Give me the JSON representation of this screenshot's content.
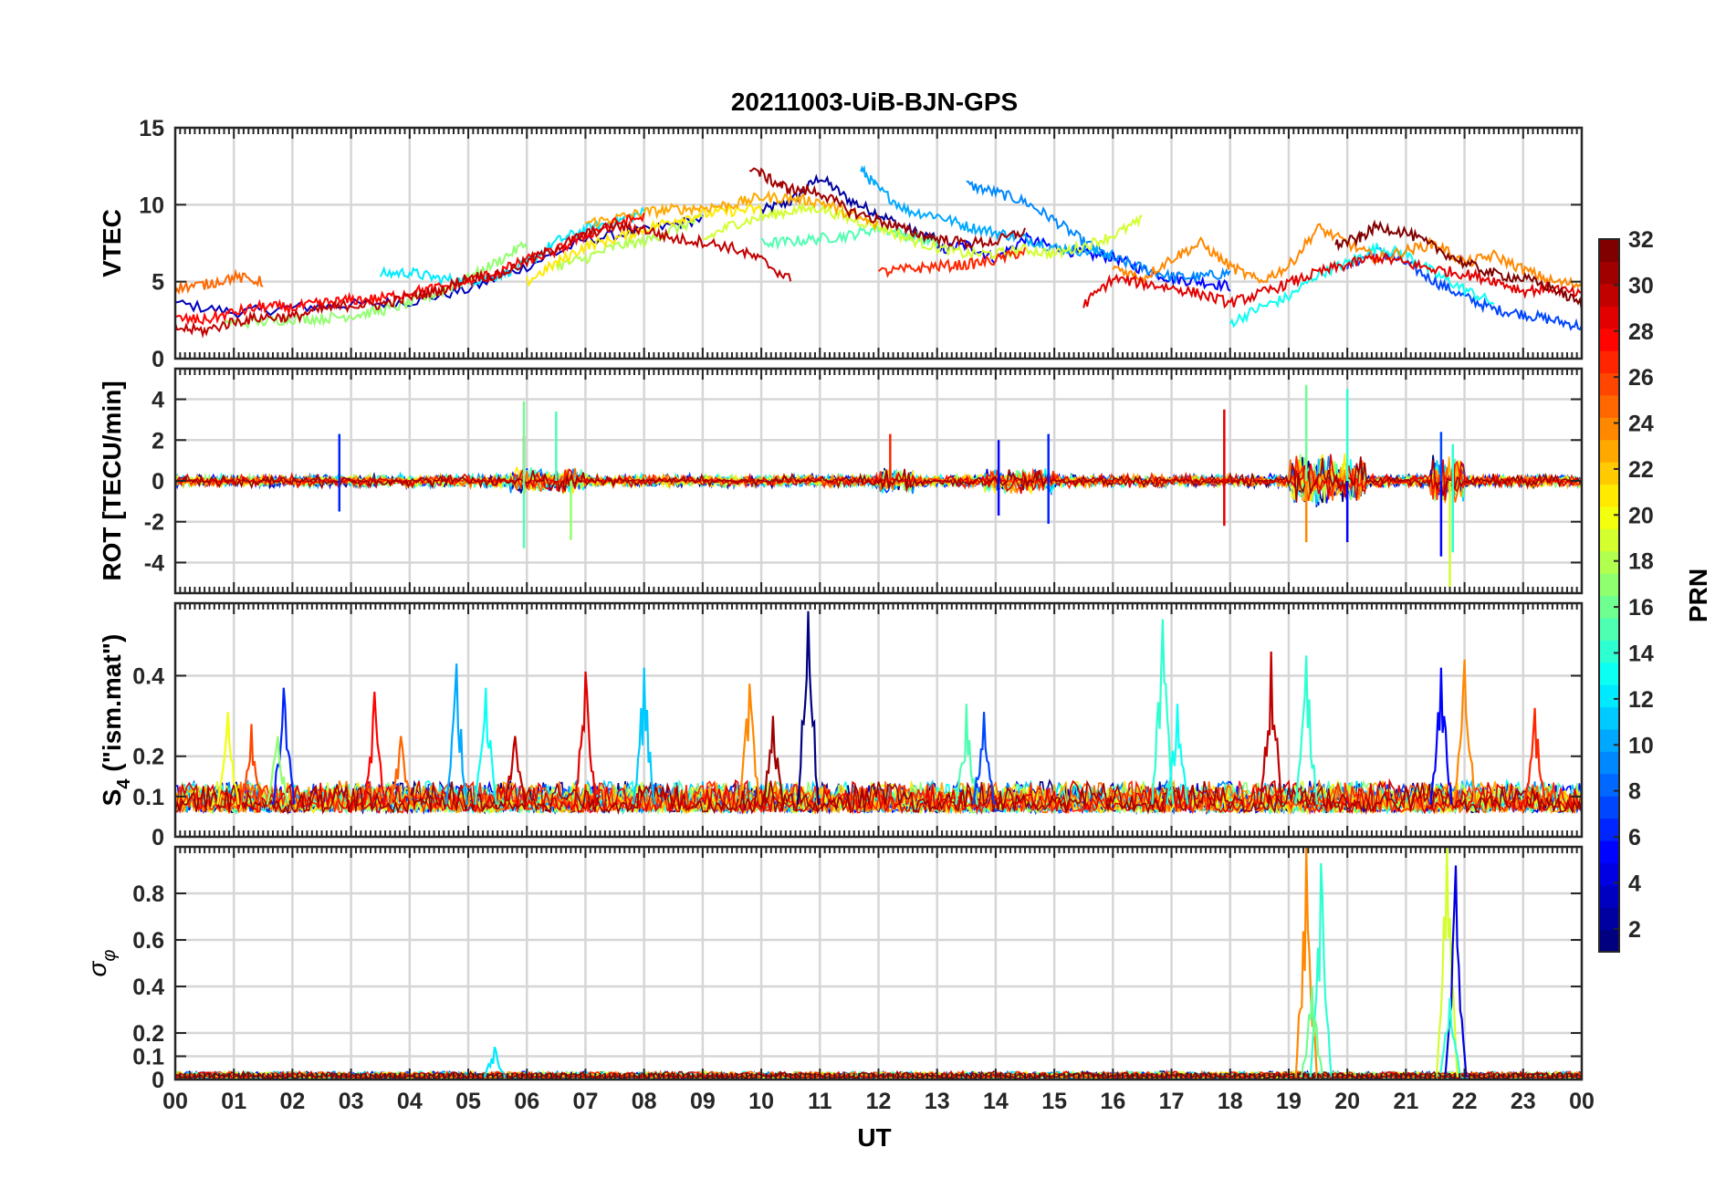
{
  "chart_data": {
    "title": "20211003-UiB-BJN-GPS",
    "xlabel": "UT",
    "x_tick_labels": [
      "00",
      "01",
      "02",
      "03",
      "04",
      "05",
      "06",
      "07",
      "08",
      "09",
      "10",
      "11",
      "12",
      "13",
      "14",
      "15",
      "16",
      "17",
      "18",
      "19",
      "20",
      "21",
      "22",
      "23",
      "00"
    ],
    "x_range_hours": [
      0,
      24
    ],
    "colorbar": {
      "label": "PRN",
      "range": [
        1,
        32
      ],
      "ticks": [
        2,
        4,
        6,
        8,
        10,
        12,
        14,
        16,
        18,
        20,
        22,
        24,
        26,
        28,
        30,
        32
      ],
      "colormap": "jet"
    },
    "panels": [
      {
        "type": "line",
        "ylabel": "VTEC",
        "ylim": [
          0,
          15
        ],
        "yticks": [
          0,
          5,
          10,
          15
        ],
        "tick_labels": [
          "0",
          "5",
          "10",
          "15"
        ],
        "series": [
          {
            "prn": 2,
            "x": [
              10.0,
              10.5,
              11.0,
              11.5,
              12.0,
              12.5,
              13.0
            ],
            "y": [
              9.6,
              10.2,
              11.8,
              10.3,
              9.4,
              8.4,
              7.7
            ]
          },
          {
            "prn": 3,
            "x": [
              0.0,
              1.0,
              2.0,
              3.0,
              4.0,
              5.0,
              6.0,
              7.0,
              8.0,
              9.0
            ],
            "y": [
              3.6,
              3.0,
              3.3,
              3.5,
              3.7,
              4.5,
              6.0,
              7.7,
              8.3,
              9.1
            ]
          },
          {
            "prn": 5,
            "x": [
              13.0,
              13.5,
              14.0,
              14.5,
              15.0,
              15.5,
              16.0,
              16.5,
              17.0,
              17.5,
              18.0
            ],
            "y": [
              7.0,
              7.4,
              6.5,
              7.8,
              7.2,
              6.8,
              6.6,
              5.8,
              5.2,
              5.0,
              4.7
            ]
          },
          {
            "prn": 7,
            "x": [
              20.0,
              20.5,
              21.0,
              21.5,
              22.0,
              22.5,
              23.0,
              23.5,
              24.0
            ],
            "y": [
              6.0,
              7.0,
              6.2,
              5.0,
              4.0,
              3.2,
              2.9,
              2.5,
              2.1
            ]
          },
          {
            "prn": 9,
            "x": [
              13.5,
              14.0,
              14.5,
              15.0,
              15.5,
              16.0,
              16.5,
              17.0,
              17.5,
              18.0
            ],
            "y": [
              11.3,
              10.8,
              10.2,
              9.0,
              7.6,
              6.5,
              5.9,
              5.3,
              5.3,
              5.6
            ]
          },
          {
            "prn": 10,
            "x": [
              11.7,
              12.0,
              12.5,
              13.0,
              13.5,
              14.0,
              14.5,
              15.0,
              15.5,
              16.0
            ],
            "y": [
              12.3,
              11.0,
              9.6,
              9.3,
              8.6,
              8.2,
              7.8,
              7.2,
              7.0,
              6.8
            ]
          },
          {
            "prn": 12,
            "x": [
              3.5,
              4.0,
              4.5,
              5.0,
              5.5,
              6.0,
              6.5,
              7.0,
              7.5,
              8.0
            ],
            "y": [
              5.5,
              5.6,
              5.2,
              5.0,
              5.4,
              6.2,
              7.6,
              8.4,
              8.9,
              9.5
            ]
          },
          {
            "prn": 13,
            "x": [
              18.0,
              18.5,
              19.0,
              19.5,
              20.0,
              20.5,
              21.0,
              21.5,
              22.0,
              22.5
            ],
            "y": [
              2.3,
              3.3,
              4.0,
              5.5,
              6.2,
              7.2,
              6.8,
              5.5,
              4.5,
              3.6
            ]
          },
          {
            "prn": 15,
            "x": [
              10.0,
              10.5,
              11.0,
              11.5,
              12.0,
              12.5,
              13.0
            ],
            "y": [
              7.5,
              7.6,
              7.8,
              8.0,
              8.5,
              8.0,
              7.5
            ]
          },
          {
            "prn": 17,
            "x": [
              0.8,
              1.5,
              2.0,
              2.5,
              3.0,
              3.5,
              4.0,
              4.5,
              5.0,
              5.5,
              6.0
            ],
            "y": [
              2.3,
              2.4,
              2.6,
              2.6,
              2.8,
              3.1,
              3.6,
              4.3,
              5.2,
              6.3,
              7.5
            ]
          },
          {
            "prn": 18,
            "x": [
              6.5,
              7.0,
              7.5,
              8.0,
              8.5,
              9.0
            ],
            "y": [
              6.0,
              6.5,
              7.3,
              7.6,
              8.4,
              9.1
            ]
          },
          {
            "prn": 19,
            "x": [
              9.0,
              9.5,
              10.0,
              10.5,
              11.0,
              11.5,
              12.0,
              12.5,
              13.0,
              13.5,
              14.0,
              14.5,
              15.0,
              15.5,
              16.0,
              16.5
            ],
            "y": [
              7.7,
              8.7,
              9.2,
              9.6,
              9.8,
              9.1,
              8.6,
              7.8,
              7.2,
              6.8,
              6.8,
              7.1,
              6.8,
              7.3,
              8.0,
              9.0
            ]
          },
          {
            "prn": 21,
            "x": [
              6.0,
              6.5,
              7.0,
              7.5,
              8.0,
              8.5,
              9.0,
              9.5,
              10.0
            ],
            "y": [
              5.0,
              6.2,
              7.3,
              7.8,
              8.4,
              9.0,
              9.4,
              9.6,
              9.7
            ]
          },
          {
            "prn": 23,
            "x": [
              7.0,
              7.5,
              8.0,
              8.5,
              9.0,
              9.5,
              10.0,
              10.5,
              11.0,
              11.5,
              12.0
            ],
            "y": [
              8.8,
              9.1,
              9.5,
              9.7,
              9.8,
              10.0,
              10.5,
              10.4,
              10.2,
              9.4,
              8.6
            ]
          },
          {
            "prn": 24,
            "x": [
              16.0,
              16.5,
              17.0,
              17.5,
              18.0,
              18.5,
              19.0,
              19.5,
              20.0,
              20.5,
              21.0,
              21.5,
              22.0,
              22.5,
              23.0,
              23.5,
              24.0
            ],
            "y": [
              6.0,
              5.2,
              6.5,
              7.5,
              6.0,
              5.0,
              6.0,
              8.5,
              7.5,
              6.5,
              7.0,
              7.5,
              6.2,
              6.7,
              5.8,
              5.0,
              4.8
            ]
          },
          {
            "prn": 25,
            "x": [
              0.0,
              0.5,
              1.0,
              1.5
            ],
            "y": [
              4.6,
              4.8,
              5.3,
              5.0
            ]
          },
          {
            "prn": 27,
            "x": [
              12.0,
              12.5,
              13.0,
              13.5,
              14.0,
              14.5
            ],
            "y": [
              5.6,
              5.8,
              6.0,
              6.1,
              6.4,
              7.0
            ]
          },
          {
            "prn": 28,
            "x": [
              0.0,
              0.5,
              1.0,
              1.5,
              2.0,
              2.5,
              3.0,
              3.5,
              4.0,
              4.5,
              5.0,
              5.5,
              6.0,
              6.5,
              7.0,
              7.5,
              8.0
            ],
            "y": [
              2.6,
              2.5,
              3.0,
              3.4,
              3.3,
              3.6,
              3.8,
              3.9,
              4.3,
              4.6,
              5.0,
              5.6,
              6.4,
              7.0,
              8.0,
              8.8,
              9.2
            ]
          },
          {
            "prn": 29,
            "x": [
              15.5,
              16.0,
              16.5,
              17.0,
              17.5,
              18.0,
              18.5,
              19.0,
              19.5,
              20.0,
              20.5,
              21.0,
              21.5,
              22.0,
              22.5,
              23.0,
              23.5,
              24.0
            ],
            "y": [
              3.5,
              5.2,
              4.9,
              4.6,
              4.2,
              3.6,
              4.2,
              4.9,
              5.6,
              6.1,
              6.6,
              6.2,
              5.8,
              5.5,
              5.1,
              4.4,
              4.6,
              4.1
            ]
          },
          {
            "prn": 30,
            "x": [
              0.0,
              0.5,
              1.0,
              1.5,
              2.0,
              2.5,
              3.0,
              3.5,
              4.0,
              4.5,
              5.0,
              5.5,
              6.0,
              6.5,
              7.0,
              7.5,
              8.0,
              8.5,
              9.0,
              9.5,
              10.0,
              10.5
            ],
            "y": [
              2.0,
              1.8,
              2.4,
              2.7,
              2.7,
              3.2,
              3.5,
              3.5,
              4.0,
              4.4,
              5.3,
              5.4,
              6.3,
              7.2,
              8.1,
              8.6,
              8.4,
              7.8,
              7.6,
              7.2,
              6.4,
              5.1
            ]
          },
          {
            "prn": 31,
            "x": [
              9.8,
              10.2,
              10.5,
              11.0,
              11.5,
              12.0,
              12.5,
              13.0,
              13.5,
              14.0,
              14.5
            ],
            "y": [
              12.5,
              11.5,
              11.0,
              10.8,
              9.6,
              9.0,
              8.3,
              7.8,
              7.5,
              7.6,
              8.3
            ]
          },
          {
            "prn": 32,
            "x": [
              19.8,
              20.2,
              20.5,
              21.0,
              21.5,
              22.0,
              22.5,
              23.0,
              23.5,
              24.0
            ],
            "y": [
              7.4,
              7.8,
              8.6,
              8.2,
              7.2,
              6.2,
              5.5,
              5.2,
              4.6,
              3.5
            ]
          }
        ]
      },
      {
        "type": "line",
        "ylabel": "ROT [TECU/min]",
        "ylim": [
          -5.5,
          5.5
        ],
        "yticks": [
          -4,
          -2,
          0,
          2,
          4
        ],
        "tick_labels": [
          "-4",
          "-2",
          "0",
          "2",
          "4"
        ],
        "description_series": "noisy fluctuations around 0 for all PRNs",
        "spikes": [
          {
            "prn": 6,
            "x": 2.8,
            "y": 2.3
          },
          {
            "prn": 6,
            "x": 2.8,
            "y": -1.5
          },
          {
            "prn": 30,
            "x": 5.95,
            "y": 2.2
          },
          {
            "prn": 16,
            "x": 5.95,
            "y": 3.9
          },
          {
            "prn": 15,
            "x": 5.95,
            "y": -3.3
          },
          {
            "prn": 15,
            "x": 6.5,
            "y": 3.4
          },
          {
            "prn": 17,
            "x": 6.75,
            "y": -2.9
          },
          {
            "prn": 27,
            "x": 12.2,
            "y": 2.3
          },
          {
            "prn": 5,
            "x": 14.05,
            "y": 2.0
          },
          {
            "prn": 5,
            "x": 14.05,
            "y": -1.7
          },
          {
            "prn": 6,
            "x": 14.9,
            "y": 2.3
          },
          {
            "prn": 6,
            "x": 14.9,
            "y": -2.1
          },
          {
            "prn": 29,
            "x": 17.9,
            "y": 3.5
          },
          {
            "prn": 29,
            "x": 17.9,
            "y": -2.2
          },
          {
            "prn": 16,
            "x": 19.3,
            "y": 4.7
          },
          {
            "prn": 24,
            "x": 19.3,
            "y": -3.0
          },
          {
            "prn": 14,
            "x": 20.0,
            "y": 4.5
          },
          {
            "prn": 5,
            "x": 20.0,
            "y": -3.0
          },
          {
            "prn": 7,
            "x": 21.6,
            "y": 2.4
          },
          {
            "prn": 5,
            "x": 21.6,
            "y": -3.7
          },
          {
            "prn": 19,
            "x": 21.75,
            "y": -5.2
          },
          {
            "prn": 14,
            "x": 21.8,
            "y": 1.8
          },
          {
            "prn": 14,
            "x": 21.8,
            "y": -3.5
          }
        ]
      },
      {
        "type": "line",
        "ylabel": "S4 (\"ism.mat\")",
        "ylabel_main": "S",
        "ylabel_sub": "4",
        "ylabel_rest": " (\"ism.mat\")",
        "ylim": [
          0,
          0.58
        ],
        "yticks": [
          0,
          0.1,
          0.2,
          0.4
        ],
        "tick_labels": [
          "0",
          "0.1",
          "0.2",
          "0.4"
        ],
        "baseline_range": [
          0.04,
          0.12
        ],
        "peaks": [
          {
            "prn": 20,
            "x": 0.9,
            "y": 0.31
          },
          {
            "prn": 26,
            "x": 1.3,
            "y": 0.28
          },
          {
            "prn": 6,
            "x": 1.85,
            "y": 0.37
          },
          {
            "prn": 17,
            "x": 1.75,
            "y": 0.25
          },
          {
            "prn": 28,
            "x": 3.4,
            "y": 0.36
          },
          {
            "prn": 25,
            "x": 3.85,
            "y": 0.25
          },
          {
            "prn": 10,
            "x": 4.8,
            "y": 0.43
          },
          {
            "prn": 13,
            "x": 5.3,
            "y": 0.37
          },
          {
            "prn": 30,
            "x": 5.8,
            "y": 0.25
          },
          {
            "prn": 29,
            "x": 7.0,
            "y": 0.41
          },
          {
            "prn": 11,
            "x": 8.0,
            "y": 0.42
          },
          {
            "prn": 24,
            "x": 9.8,
            "y": 0.38
          },
          {
            "prn": 31,
            "x": 10.2,
            "y": 0.3
          },
          {
            "prn": 1,
            "x": 10.8,
            "y": 0.56
          },
          {
            "prn": 15,
            "x": 13.5,
            "y": 0.33
          },
          {
            "prn": 7,
            "x": 13.8,
            "y": 0.31
          },
          {
            "prn": 14,
            "x": 16.85,
            "y": 0.54
          },
          {
            "prn": 13,
            "x": 17.1,
            "y": 0.33
          },
          {
            "prn": 30,
            "x": 18.7,
            "y": 0.46
          },
          {
            "prn": 14,
            "x": 19.3,
            "y": 0.45
          },
          {
            "prn": 5,
            "x": 21.6,
            "y": 0.42
          },
          {
            "prn": 24,
            "x": 22.0,
            "y": 0.44
          },
          {
            "prn": 27,
            "x": 23.2,
            "y": 0.32
          }
        ]
      },
      {
        "type": "line",
        "ylabel": "σφ",
        "ylabel_main": "σ",
        "ylabel_sub": "φ",
        "ylim": [
          0,
          1.0
        ],
        "yticks": [
          0,
          0.1,
          0.2,
          0.4,
          0.6,
          0.8
        ],
        "tick_labels": [
          "0",
          "0.1",
          "0.2",
          "0.4",
          "0.6",
          "0.8"
        ],
        "peaks": [
          {
            "prn": 24,
            "x": 19.3,
            "y": 1.0
          },
          {
            "prn": 14,
            "x": 19.55,
            "y": 0.93
          },
          {
            "prn": 16,
            "x": 19.4,
            "y": 0.4
          },
          {
            "prn": 19,
            "x": 21.7,
            "y": 1.0
          },
          {
            "prn": 4,
            "x": 21.85,
            "y": 0.92
          },
          {
            "prn": 14,
            "x": 21.75,
            "y": 0.35
          },
          {
            "prn": 12,
            "x": 5.45,
            "y": 0.14
          }
        ]
      }
    ]
  }
}
